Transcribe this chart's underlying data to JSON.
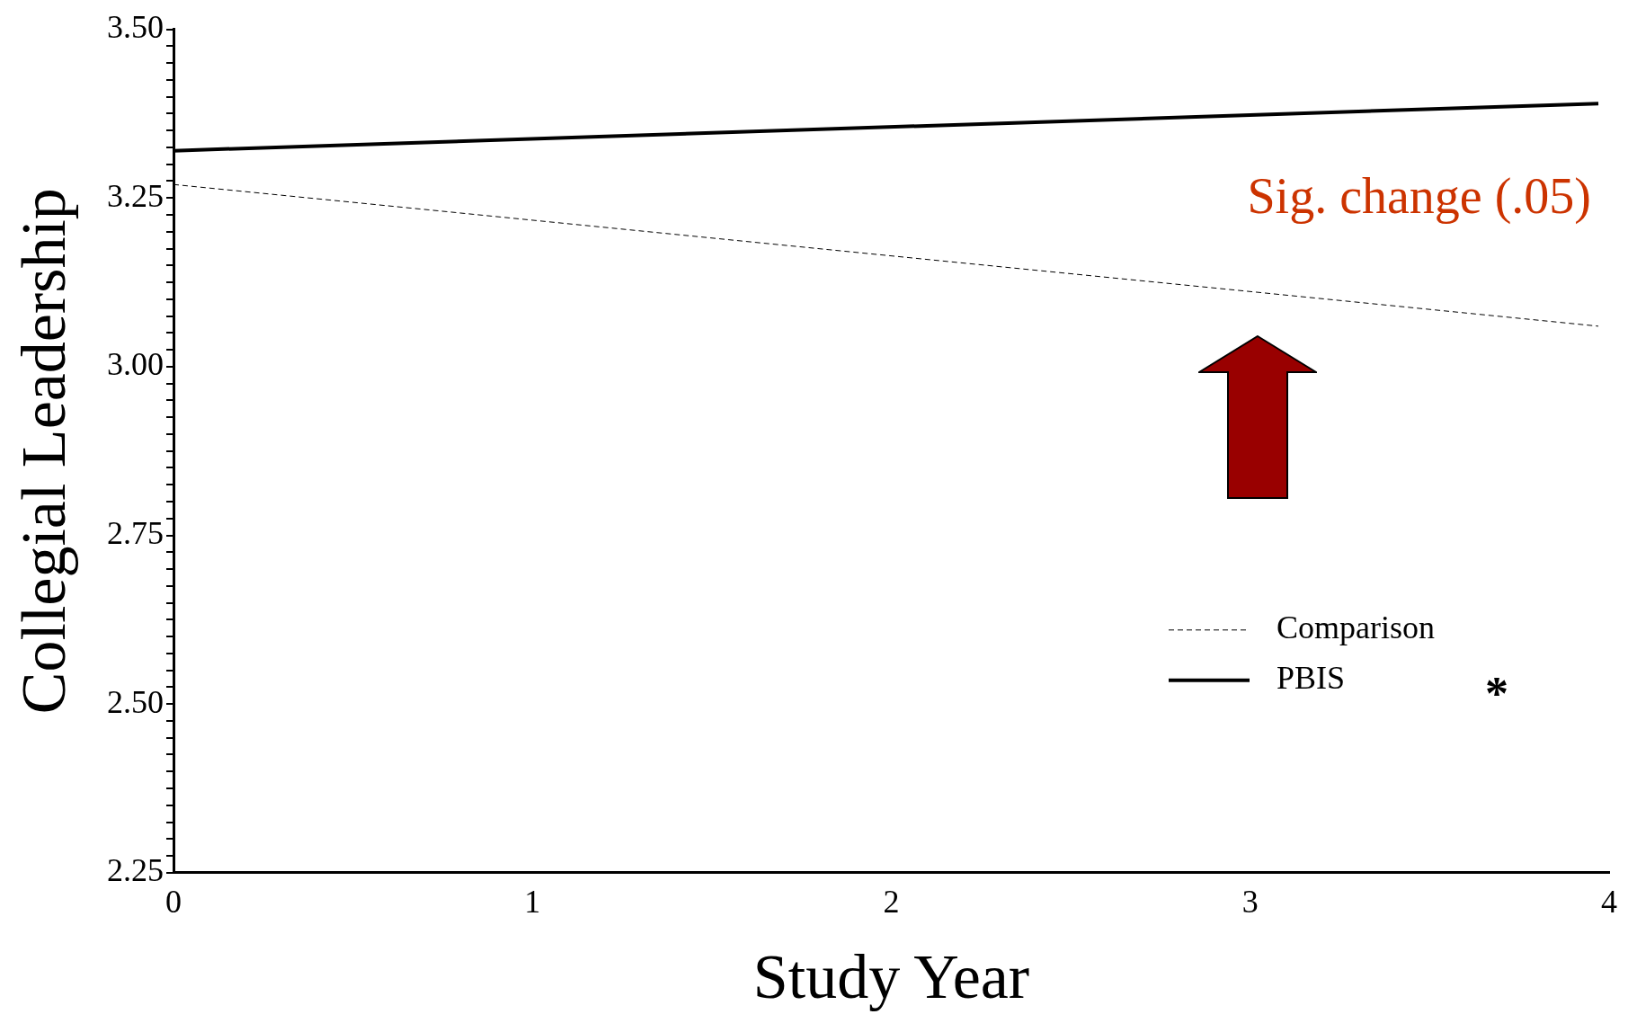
{
  "chart_data": {
    "type": "line",
    "xlabel": "Study Year",
    "ylabel": "Collegial Leadership",
    "x": [
      0,
      3.97
    ],
    "series": [
      {
        "name": "Comparison",
        "color": "#000000",
        "values": [
          3.27,
          3.06
        ],
        "line_style": "dashed"
      },
      {
        "name": "PBIS",
        "color": "#000000",
        "values": [
          3.32,
          3.39
        ],
        "line_style": "solid"
      }
    ],
    "xlim": [
      0,
      4
    ],
    "xticks": [
      0,
      1,
      2,
      3,
      4
    ],
    "ylim": [
      2.25,
      3.5
    ],
    "yticks": [
      {
        "value": 2.25,
        "label": "2.25"
      },
      {
        "value": 2.275,
        "label": null
      },
      {
        "value": 2.3,
        "label": null
      },
      {
        "value": 2.325,
        "label": null
      },
      {
        "value": 2.35,
        "label": null
      },
      {
        "value": 2.375,
        "label": null
      },
      {
        "value": 2.4,
        "label": null
      },
      {
        "value": 2.425,
        "label": null
      },
      {
        "value": 2.45,
        "label": null
      },
      {
        "value": 2.475,
        "label": null
      },
      {
        "value": 2.5,
        "label": "2.50"
      },
      {
        "value": 2.525,
        "label": null
      },
      {
        "value": 2.55,
        "label": null
      },
      {
        "value": 2.575,
        "label": null
      },
      {
        "value": 2.6,
        "label": null
      },
      {
        "value": 2.625,
        "label": null
      },
      {
        "value": 2.65,
        "label": null
      },
      {
        "value": 2.675,
        "label": null
      },
      {
        "value": 2.7,
        "label": null
      },
      {
        "value": 2.725,
        "label": null
      },
      {
        "value": 2.75,
        "label": "2.75"
      },
      {
        "value": 2.775,
        "label": null
      },
      {
        "value": 2.8,
        "label": null
      },
      {
        "value": 2.825,
        "label": null
      },
      {
        "value": 2.85,
        "label": null
      },
      {
        "value": 2.875,
        "label": null
      },
      {
        "value": 2.9,
        "label": null
      },
      {
        "value": 2.925,
        "label": null
      },
      {
        "value": 2.95,
        "label": null
      },
      {
        "value": 2.975,
        "label": null
      },
      {
        "value": 3.0,
        "label": "3.00"
      },
      {
        "value": 3.025,
        "label": null
      },
      {
        "value": 3.05,
        "label": null
      },
      {
        "value": 3.075,
        "label": null
      },
      {
        "value": 3.1,
        "label": null
      },
      {
        "value": 3.125,
        "label": null
      },
      {
        "value": 3.15,
        "label": null
      },
      {
        "value": 3.175,
        "label": null
      },
      {
        "value": 3.2,
        "label": null
      },
      {
        "value": 3.225,
        "label": null
      },
      {
        "value": 3.25,
        "label": "3.25"
      },
      {
        "value": 3.275,
        "label": null
      },
      {
        "value": 3.3,
        "label": null
      },
      {
        "value": 3.325,
        "label": null
      },
      {
        "value": 3.35,
        "label": null
      },
      {
        "value": 3.375,
        "label": null
      },
      {
        "value": 3.4,
        "label": null
      },
      {
        "value": 3.425,
        "label": null
      },
      {
        "value": 3.45,
        "label": null
      },
      {
        "value": 3.475,
        "label": null
      },
      {
        "value": 3.5,
        "label": "3.50"
      }
    ],
    "grid": false,
    "legend": "bottom right",
    "marker": "none",
    "annotations": [
      "Sig. change (.05)",
      "*"
    ]
  }
}
